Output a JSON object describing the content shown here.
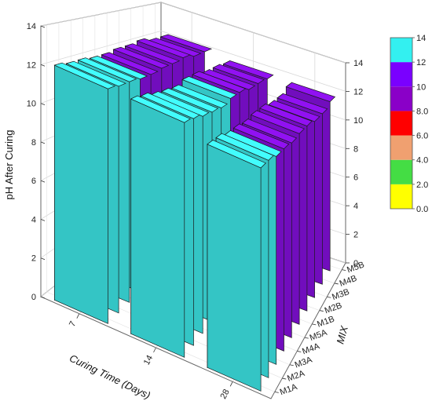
{
  "chart_data": {
    "type": "bar3d",
    "title": "",
    "zlabel": "pH After Curing",
    "xlabel": "Curing Time (Days)",
    "ylabel": "MIX",
    "x_categories": [
      "7",
      "14",
      "28"
    ],
    "y_categories": [
      "M1A",
      "M2A",
      "M3A",
      "M4A",
      "M5A",
      "M1B",
      "M2B",
      "M3B",
      "M4B",
      "M5B"
    ],
    "zlim": [
      0,
      14
    ],
    "z_ticks": [
      "0",
      "2",
      "4",
      "6",
      "8",
      "10",
      "12",
      "14"
    ],
    "values": [
      [
        12.2,
        12.1,
        12.1,
        12.0,
        12.0,
        12.1,
        12.1,
        12.2,
        12.0,
        12.0
      ],
      [
        12.2,
        12.1,
        11.9,
        11.8,
        11.7,
        11.9,
        11.9,
        11.7,
        11.7,
        11.6
      ],
      [
        11.6,
        11.6,
        11.4,
        11.4,
        11.3,
        11.4,
        11.4,
        11.2,
        11.2,
        11.5
      ]
    ],
    "colorbar": {
      "labels": [
        "0.0",
        "2.0",
        "4.0",
        "6.0",
        "8.0",
        "10",
        "12",
        "14"
      ],
      "colors": [
        "#ffff00",
        "#44dd44",
        "#f0a070",
        "#ff0000",
        "#8a00c8",
        "#7a00ff",
        "#33f0f0"
      ]
    },
    "bar_colors": {
      "high": "#3ff0f0",
      "mid": "#8a10e6"
    },
    "grid": true
  }
}
